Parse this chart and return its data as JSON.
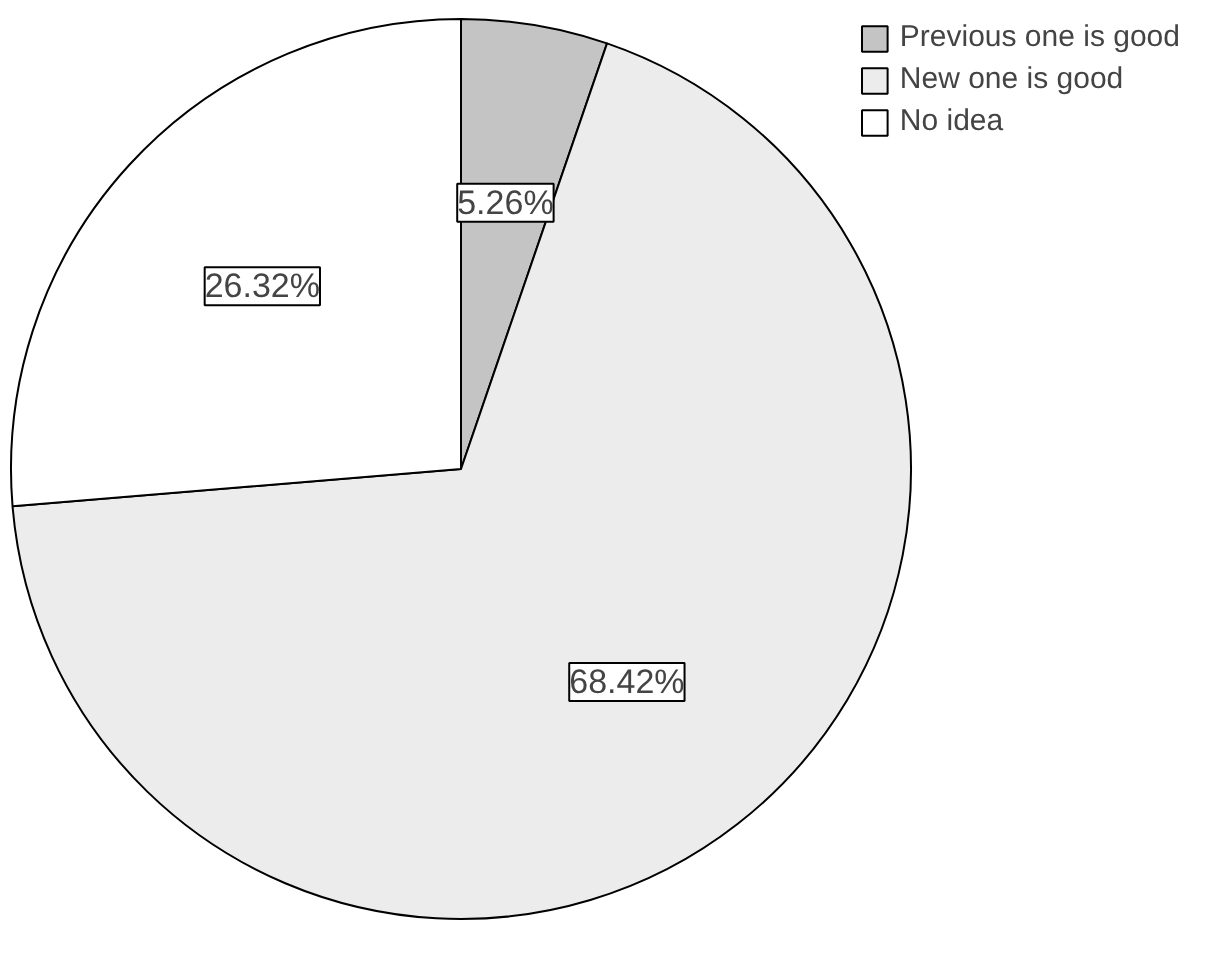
{
  "chart_data": {
    "type": "pie",
    "categories": [
      "Previous one is good",
      "New one is good",
      "No idea"
    ],
    "values": [
      5.26,
      68.42,
      26.32
    ],
    "colors": [
      "#c4c4c4",
      "#ececec",
      "#ffffff"
    ],
    "value_labels": [
      "5.26%",
      "68.42%",
      "26.32%"
    ],
    "legend": "right"
  }
}
